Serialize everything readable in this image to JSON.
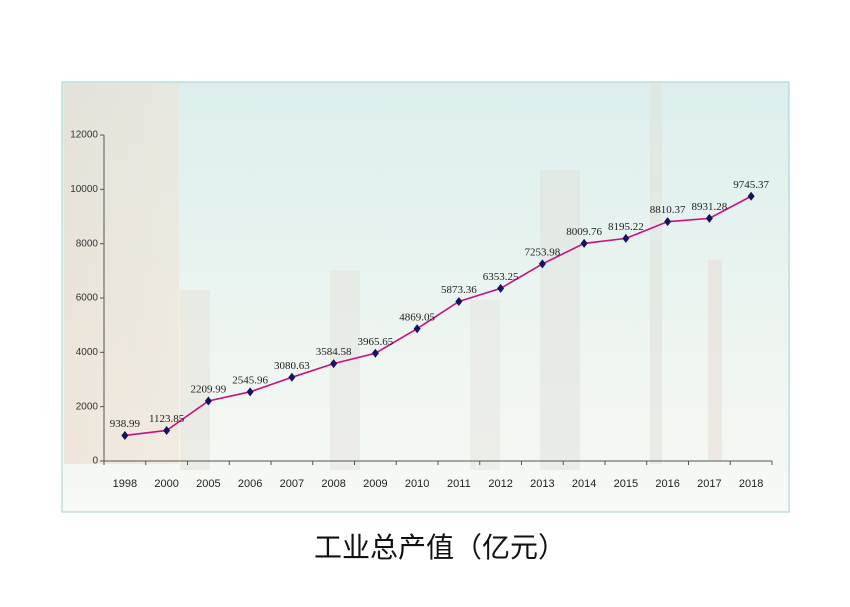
{
  "chart_data": {
    "type": "line",
    "title": "工业总产值（亿元）",
    "categories": [
      "1998",
      "2000",
      "2005",
      "2006",
      "2007",
      "2008",
      "2009",
      "2010",
      "2011",
      "2012",
      "2013",
      "2014",
      "2015",
      "2016",
      "2017",
      "2018"
    ],
    "values": [
      938.99,
      1123.85,
      2209.99,
      2545.96,
      3080.63,
      3584.58,
      3965.65,
      4869.05,
      5873.36,
      6353.25,
      7253.98,
      8009.76,
      8195.22,
      8810.37,
      8931.28,
      9745.37
    ],
    "color": "#c8117f",
    "marker_color": "#14145e",
    "ylim": [
      0,
      12000
    ],
    "yticks": [
      0,
      2000,
      4000,
      6000,
      8000,
      10000,
      12000
    ],
    "grid": false
  }
}
